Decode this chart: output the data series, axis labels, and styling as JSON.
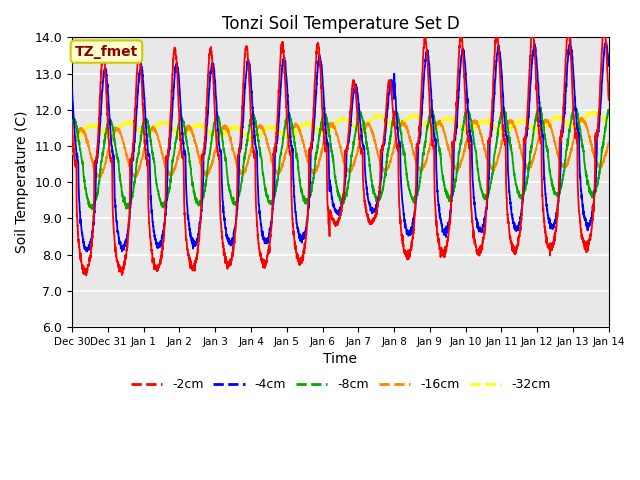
{
  "title": "Tonzi Soil Temperature Set D",
  "xlabel": "Time",
  "ylabel": "Soil Temperature (C)",
  "ylim": [
    6.0,
    14.0
  ],
  "yticks": [
    6.0,
    7.0,
    8.0,
    9.0,
    10.0,
    11.0,
    12.0,
    13.0,
    14.0
  ],
  "annotation_text": "TZ_fmet",
  "annotation_color": "#8B0000",
  "annotation_bg": "#FFFFCC",
  "annotation_border": "#CCCC00",
  "bg_color": "#E8E8E8",
  "grid_color": "white",
  "line_colors": {
    "-2cm": "#FF0000",
    "-4cm": "#0000FF",
    "-8cm": "#00AA00",
    "-16cm": "#FF8800",
    "-32cm": "#FFFF00"
  },
  "xtick_labels": [
    "Dec 30",
    "Dec 31",
    "Jan 1",
    "Jan 2",
    "Jan 3",
    "Jan 4",
    "Jan 5",
    "Jan 6",
    "Jan 7",
    "Jan 8",
    "Jan 9",
    "Jan 10",
    "Jan 11",
    "Jan 12",
    "Jan 13",
    "Jan 14"
  ],
  "xtick_positions": [
    0,
    1,
    2,
    3,
    4,
    5,
    6,
    7,
    8,
    9,
    10,
    11,
    12,
    13,
    14,
    15
  ]
}
